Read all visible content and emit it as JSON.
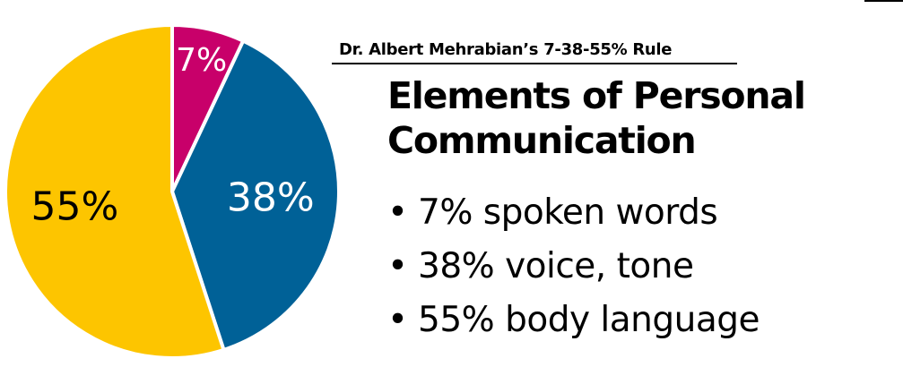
{
  "subtitle": "Dr. Albert Mehrabian’s 7-38-55% Rule",
  "title_lines": [
    "Elements of Personal",
    "Communication"
  ],
  "bullets": [
    {
      "symbol": "•",
      "text": "7% spoken words"
    },
    {
      "symbol": "•",
      "text": "38% voice, tone"
    },
    {
      "symbol": "•",
      "text": "55% body language"
    }
  ],
  "chart_data": {
    "type": "pie",
    "title": "",
    "start_angle": "12 o'clock",
    "direction": "clockwise",
    "slices": [
      {
        "label": "7%",
        "value": 7,
        "color": "#c8006a"
      },
      {
        "label": "38%",
        "value": 38,
        "color": "#006197"
      },
      {
        "label": "55%",
        "value": 55,
        "color": "#fdc500"
      }
    ],
    "slice_border_color": "#ffffff",
    "label_color": "#ffffff",
    "large_label_color": "#000000"
  }
}
